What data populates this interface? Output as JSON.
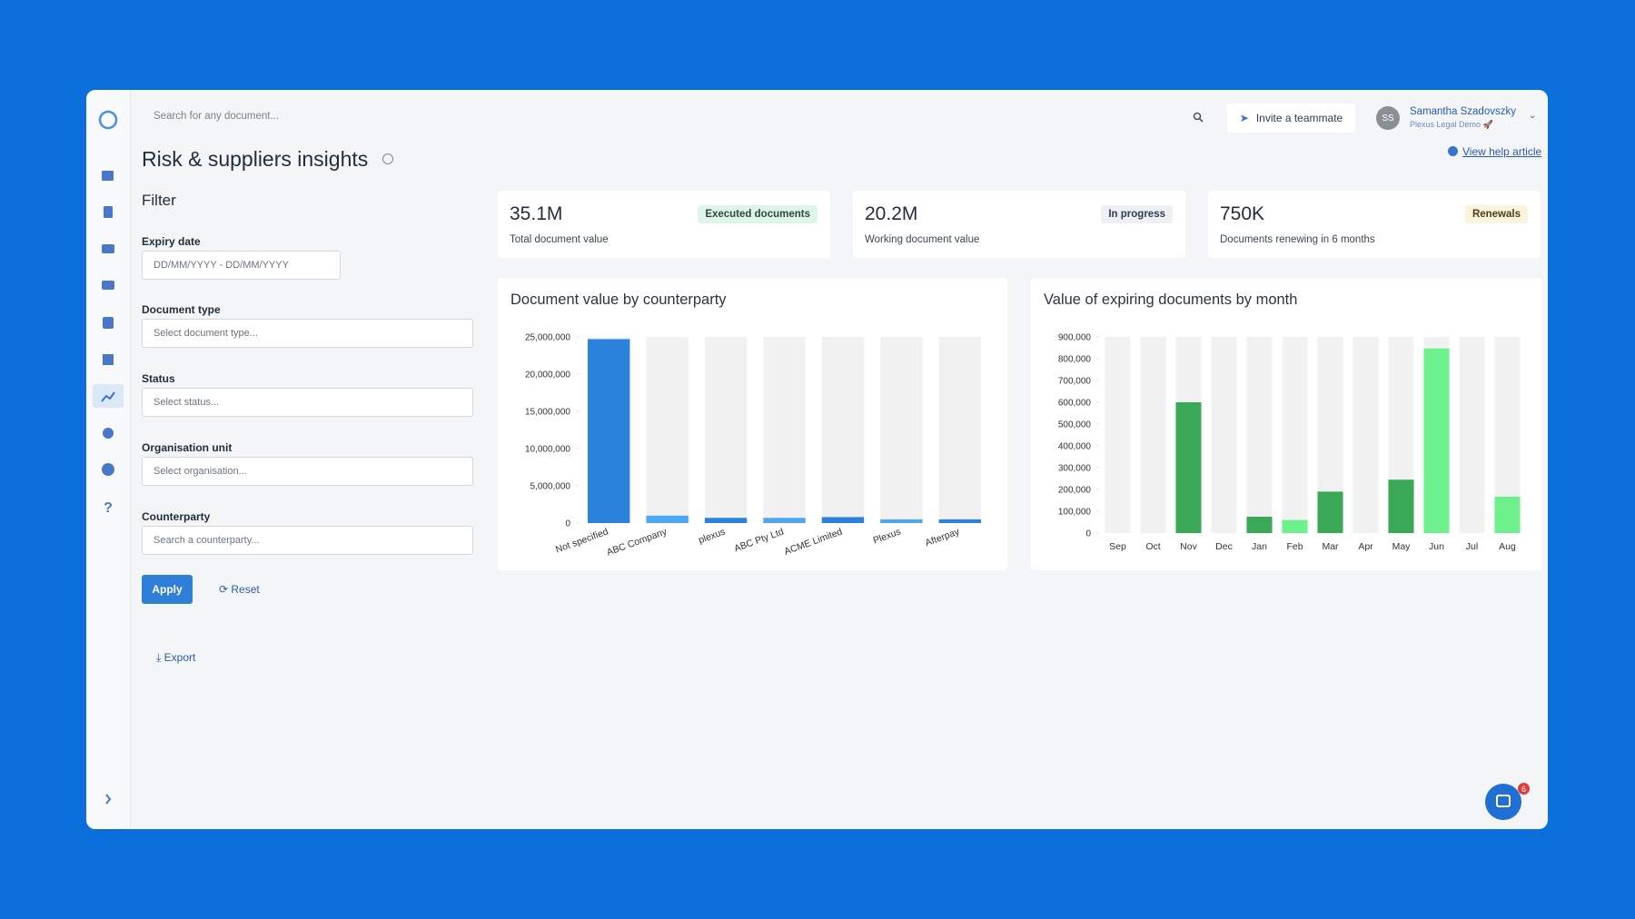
{
  "header": {
    "search_placeholder": "Search for any document...",
    "invite": "Invite a teammate",
    "user_initials": "SS",
    "user_name": "Samantha Szadovszky",
    "user_org": "Plexus Legal Demo 🚀"
  },
  "page": {
    "title": "Risk & suppliers insights",
    "help_link": "View help article"
  },
  "filter": {
    "title": "Filter",
    "fields": [
      {
        "label": "Expiry date",
        "placeholder": "DD/MM/YYYY - DD/MM/YYYY"
      },
      {
        "label": "Document type",
        "placeholder": "Select document type..."
      },
      {
        "label": "Status",
        "placeholder": "Select status..."
      },
      {
        "label": "Organisation unit",
        "placeholder": "Select organisation..."
      },
      {
        "label": "Counterparty",
        "placeholder": "Search a counterparty..."
      }
    ],
    "apply": "Apply",
    "reset": "Reset",
    "export": "Export"
  },
  "kpis": [
    {
      "value": "35.1M",
      "label": "Total document value",
      "badge": "Executed documents"
    },
    {
      "value": "20.2M",
      "label": "Working document value",
      "badge": "In progress"
    },
    {
      "value": "750K",
      "label": "Documents renewing in 6 months",
      "badge": "Renewals"
    }
  ],
  "chart_data": [
    {
      "type": "bar",
      "title": "Document value by counterparty",
      "categories": [
        "Not specified",
        "ABC Company",
        "plexus",
        "ABC Pty Ltd",
        "ACME Limited",
        "Plexus",
        "Afterpay"
      ],
      "values": [
        24700000,
        1000000,
        700000,
        700000,
        800000,
        500000,
        500000
      ],
      "colors": [
        "#2a82dc",
        "#4ea6ec"
      ],
      "ylim": [
        0,
        25000000
      ],
      "yticks": [
        {
          "value": 0,
          "label": "0"
        },
        {
          "value": 5000000,
          "label": "5,000,000"
        },
        {
          "value": 10000000,
          "label": "10,000,000"
        },
        {
          "value": 15000000,
          "label": "15,000,000"
        },
        {
          "value": 20000000,
          "label": "20,000,000"
        },
        {
          "value": 25000000,
          "label": "25,000,000"
        }
      ]
    },
    {
      "type": "bar",
      "title": "Value of expiring documents by month",
      "categories": [
        "Sep",
        "Oct",
        "Nov",
        "Dec",
        "Jan",
        "Feb",
        "Mar",
        "Apr",
        "May",
        "Jun",
        "Jul",
        "Aug"
      ],
      "values": [
        0,
        0,
        600000,
        0,
        75000,
        60000,
        190000,
        0,
        245000,
        847000,
        0,
        167000
      ],
      "colors": [
        "#3aa857",
        "#6ef08c"
      ],
      "ylim": [
        0,
        900000
      ],
      "yticks": [
        {
          "value": 0,
          "label": "0"
        },
        {
          "value": 100000,
          "label": "100,000"
        },
        {
          "value": 200000,
          "label": "200,000"
        },
        {
          "value": 300000,
          "label": "300,000"
        },
        {
          "value": 400000,
          "label": "400,000"
        },
        {
          "value": 500000,
          "label": "500,000"
        },
        {
          "value": 600000,
          "label": "600,000"
        },
        {
          "value": 700000,
          "label": "700,000"
        },
        {
          "value": 800000,
          "label": "800,000"
        },
        {
          "value": 900000,
          "label": "900,000"
        }
      ]
    }
  ],
  "chat_badge": "6"
}
